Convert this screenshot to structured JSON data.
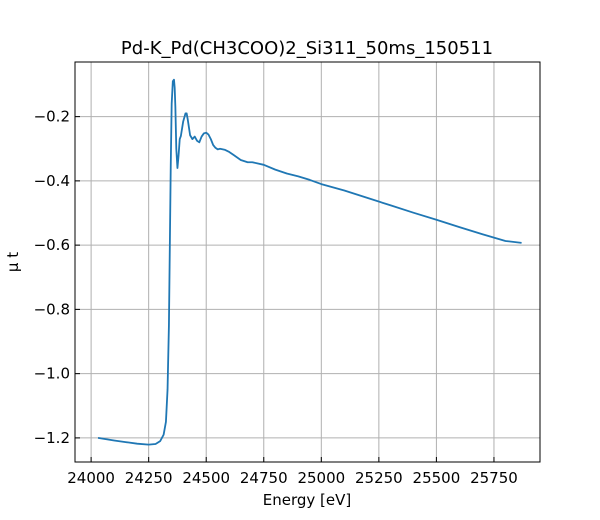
{
  "chart_data": {
    "type": "line",
    "title": "Pd-K_Pd(CH3COO)2_Si311_50ms_150511",
    "xlabel": "Energy [eV]",
    "ylabel": "μ t",
    "xlim": [
      23930,
      25950
    ],
    "ylim": [
      -1.275,
      -0.03
    ],
    "xticks": [
      24000,
      24250,
      24500,
      24750,
      25000,
      25250,
      25500,
      25750
    ],
    "yticks": [
      -1.2,
      -1.0,
      -0.8,
      -0.6,
      -0.4,
      -0.2
    ],
    "xtick_labels": [
      "24000",
      "24250",
      "24500",
      "24750",
      "25000",
      "25250",
      "25500",
      "25750"
    ],
    "ytick_labels": [
      "−1.2",
      "−1.0",
      "−0.8",
      "−0.6",
      "−0.4",
      "−0.2"
    ],
    "grid": true,
    "series": [
      {
        "color": "#1f77b4",
        "x": [
          24030,
          24100,
          24150,
          24200,
          24250,
          24280,
          24300,
          24315,
          24325,
          24332,
          24338,
          24342,
          24346,
          24350,
          24355,
          24360,
          24363,
          24366,
          24370,
          24375,
          24380,
          24385,
          24390,
          24400,
          24410,
          24415,
          24420,
          24430,
          24440,
          24450,
          24460,
          24470,
          24480,
          24490,
          24500,
          24510,
          24520,
          24530,
          24540,
          24550,
          24560,
          24580,
          24600,
          24620,
          24650,
          24680,
          24700,
          24750,
          24800,
          24850,
          24900,
          24950,
          25000,
          25100,
          25200,
          25300,
          25400,
          25500,
          25600,
          25700,
          25800,
          25870
        ],
        "y": [
          -1.2,
          -1.208,
          -1.213,
          -1.218,
          -1.221,
          -1.219,
          -1.21,
          -1.19,
          -1.15,
          -1.05,
          -0.85,
          -0.6,
          -0.35,
          -0.16,
          -0.09,
          -0.085,
          -0.11,
          -0.17,
          -0.3,
          -0.36,
          -0.32,
          -0.27,
          -0.26,
          -0.215,
          -0.19,
          -0.19,
          -0.21,
          -0.258,
          -0.27,
          -0.262,
          -0.275,
          -0.28,
          -0.262,
          -0.252,
          -0.25,
          -0.256,
          -0.27,
          -0.288,
          -0.297,
          -0.302,
          -0.3,
          -0.303,
          -0.31,
          -0.32,
          -0.335,
          -0.342,
          -0.342,
          -0.35,
          -0.365,
          -0.377,
          -0.386,
          -0.397,
          -0.41,
          -0.43,
          -0.453,
          -0.476,
          -0.499,
          -0.521,
          -0.544,
          -0.566,
          -0.587,
          -0.593
        ]
      }
    ]
  }
}
